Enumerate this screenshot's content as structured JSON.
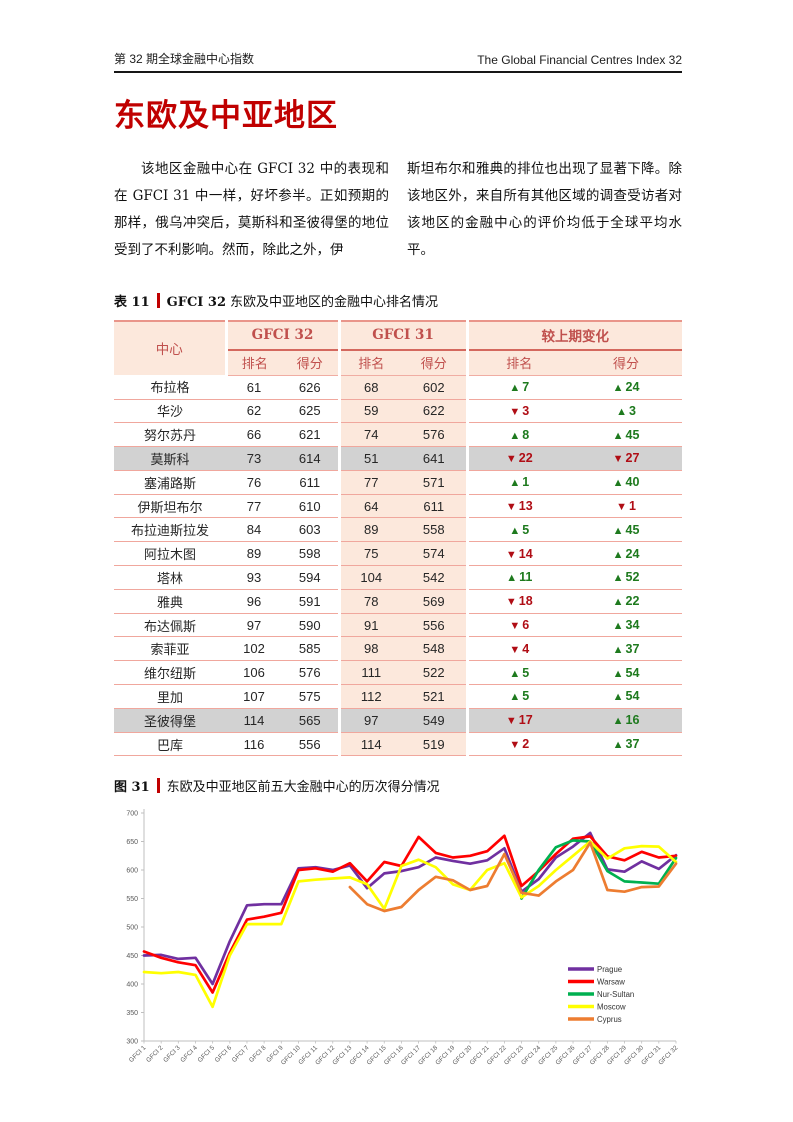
{
  "page": {
    "header_left": "第 32 期全球金融中心指数",
    "header_right": "The Global Financial Centres Index 32",
    "title": "东欧及中亚地区",
    "para_col1": "该地区金融中心在 GFCI 32 中的表现和在 GFCI 31 中一样，好坏参半。正如预期的那样，俄乌冲突后，莫斯科和圣彼得堡的地位受到了不利影响。然而，除此之外，伊",
    "para_col2": "斯坦布尔和雅典的排位也出现了显著下降。除该地区外，来自所有其他区域的调查受访者对该地区的金融中心的评价均低于全球平均水平。"
  },
  "table": {
    "caption_label": "表 11",
    "caption_bold": "GFCI 32",
    "caption_rest": "东欧及中亚地区的金融中心排名情况",
    "col_center": "中心",
    "group_headers": [
      "GFCI 32",
      "GFCI 31",
      "较上期变化"
    ],
    "sub_headers": [
      "排名",
      "得分"
    ],
    "colors": {
      "up": "#1e7a1e",
      "down": "#b00d15",
      "header_bg": "#fce8dc",
      "header_text": "#c0504d",
      "highlight_bg": "#d2d2d2",
      "accent": "#c00000"
    },
    "rows": [
      {
        "center": "布拉格",
        "r32": 61,
        "s32": 626,
        "r31": 68,
        "s31": 602,
        "dr": 7,
        "ds": 24,
        "highlight": false
      },
      {
        "center": "华沙",
        "r32": 62,
        "s32": 625,
        "r31": 59,
        "s31": 622,
        "dr": -3,
        "ds": 3,
        "highlight": false
      },
      {
        "center": "努尔苏丹",
        "r32": 66,
        "s32": 621,
        "r31": 74,
        "s31": 576,
        "dr": 8,
        "ds": 45,
        "highlight": false
      },
      {
        "center": "莫斯科",
        "r32": 73,
        "s32": 614,
        "r31": 51,
        "s31": 641,
        "dr": -22,
        "ds": -27,
        "highlight": true
      },
      {
        "center": "塞浦路斯",
        "r32": 76,
        "s32": 611,
        "r31": 77,
        "s31": 571,
        "dr": 1,
        "ds": 40,
        "highlight": false
      },
      {
        "center": "伊斯坦布尔",
        "r32": 77,
        "s32": 610,
        "r31": 64,
        "s31": 611,
        "dr": -13,
        "ds": -1,
        "highlight": false
      },
      {
        "center": "布拉迪斯拉发",
        "r32": 84,
        "s32": 603,
        "r31": 89,
        "s31": 558,
        "dr": 5,
        "ds": 45,
        "highlight": false
      },
      {
        "center": "阿拉木图",
        "r32": 89,
        "s32": 598,
        "r31": 75,
        "s31": 574,
        "dr": -14,
        "ds": 24,
        "highlight": false
      },
      {
        "center": "塔林",
        "r32": 93,
        "s32": 594,
        "r31": 104,
        "s31": 542,
        "dr": 11,
        "ds": 52,
        "highlight": false
      },
      {
        "center": "雅典",
        "r32": 96,
        "s32": 591,
        "r31": 78,
        "s31": 569,
        "dr": -18,
        "ds": 22,
        "highlight": false
      },
      {
        "center": "布达佩斯",
        "r32": 97,
        "s32": 590,
        "r31": 91,
        "s31": 556,
        "dr": -6,
        "ds": 34,
        "highlight": false
      },
      {
        "center": "索菲亚",
        "r32": 102,
        "s32": 585,
        "r31": 98,
        "s31": 548,
        "dr": -4,
        "ds": 37,
        "highlight": false
      },
      {
        "center": "维尔纽斯",
        "r32": 106,
        "s32": 576,
        "r31": 111,
        "s31": 522,
        "dr": 5,
        "ds": 54,
        "highlight": false
      },
      {
        "center": "里加",
        "r32": 107,
        "s32": 575,
        "r31": 112,
        "s31": 521,
        "dr": 5,
        "ds": 54,
        "highlight": false
      },
      {
        "center": "圣彼得堡",
        "r32": 114,
        "s32": 565,
        "r31": 97,
        "s31": 549,
        "dr": -17,
        "ds": 16,
        "highlight": true
      },
      {
        "center": "巴库",
        "r32": 116,
        "s32": 556,
        "r31": 114,
        "s31": 519,
        "dr": -2,
        "ds": 37,
        "highlight": false
      }
    ]
  },
  "figure": {
    "caption_label": "图 31",
    "caption_rest": "东欧及中亚地区前五大金融中心的历次得分情况"
  },
  "chart_data": {
    "type": "line",
    "title": "",
    "xlabel": "",
    "ylabel": "",
    "ylim": [
      300,
      700
    ],
    "yticks": [
      300,
      350,
      400,
      450,
      500,
      550,
      600,
      650,
      700
    ],
    "grid": false,
    "legend_position": "inside-right-bottom",
    "categories": [
      "GFCI 1",
      "GFCI 2",
      "GFCI 3",
      "GFCI 4",
      "GFCI 5",
      "GFCI 6",
      "GFCI 7",
      "GFCI 8",
      "GFCI 9",
      "GFCI 10",
      "GFCI 11",
      "GFCI 12",
      "GFCI 13",
      "GFCI 14",
      "GFCI 15",
      "GFCI 16",
      "GFCI 17",
      "GFCI 18",
      "GFCI 19",
      "GFCI 20",
      "GFCI 21",
      "GFCI 22",
      "GFCI 23",
      "GFCI 24",
      "GFCI 25",
      "GFCI 26",
      "GFCI 27",
      "GFCI 28",
      "GFCI 29",
      "GFCI 30",
      "GFCI 31",
      "GFCI 32"
    ],
    "series": [
      {
        "name": "Prague",
        "color": "#7030A0",
        "values": [
          450,
          451,
          444,
          446,
          400,
          475,
          538,
          540,
          540,
          603,
          605,
          600,
          608,
          568,
          594,
          598,
          605,
          622,
          616,
          611,
          617,
          638,
          562,
          584,
          622,
          641,
          665,
          601,
          597,
          615,
          602,
          626
        ]
      },
      {
        "name": "Warsaw",
        "color": "#FF0000",
        "values": [
          457,
          446,
          438,
          433,
          385,
          455,
          513,
          518,
          525,
          600,
          603,
          597,
          612,
          580,
          614,
          607,
          658,
          630,
          622,
          625,
          633,
          660,
          572,
          598,
          628,
          655,
          659,
          624,
          617,
          632,
          622,
          625
        ]
      },
      {
        "name": "Nur-Sultan",
        "color": "#00B050",
        "values": [
          null,
          null,
          null,
          null,
          null,
          null,
          null,
          null,
          null,
          null,
          null,
          null,
          null,
          null,
          null,
          null,
          null,
          null,
          null,
          null,
          null,
          null,
          550,
          600,
          640,
          652,
          650,
          598,
          580,
          578,
          576,
          621
        ]
      },
      {
        "name": "Moscow",
        "color": "#FFFF00",
        "values": [
          421,
          419,
          421,
          416,
          360,
          450,
          505,
          505,
          505,
          580,
          583,
          585,
          587,
          575,
          532,
          607,
          618,
          605,
          575,
          565,
          600,
          612,
          552,
          572,
          600,
          625,
          650,
          620,
          638,
          642,
          641,
          614
        ]
      },
      {
        "name": "Cyprus",
        "color": "#ED7D31",
        "values": [
          null,
          null,
          null,
          null,
          null,
          null,
          null,
          null,
          null,
          null,
          null,
          null,
          570,
          540,
          528,
          535,
          565,
          588,
          582,
          565,
          572,
          628,
          560,
          555,
          580,
          600,
          648,
          565,
          562,
          570,
          571,
          611
        ]
      }
    ]
  }
}
